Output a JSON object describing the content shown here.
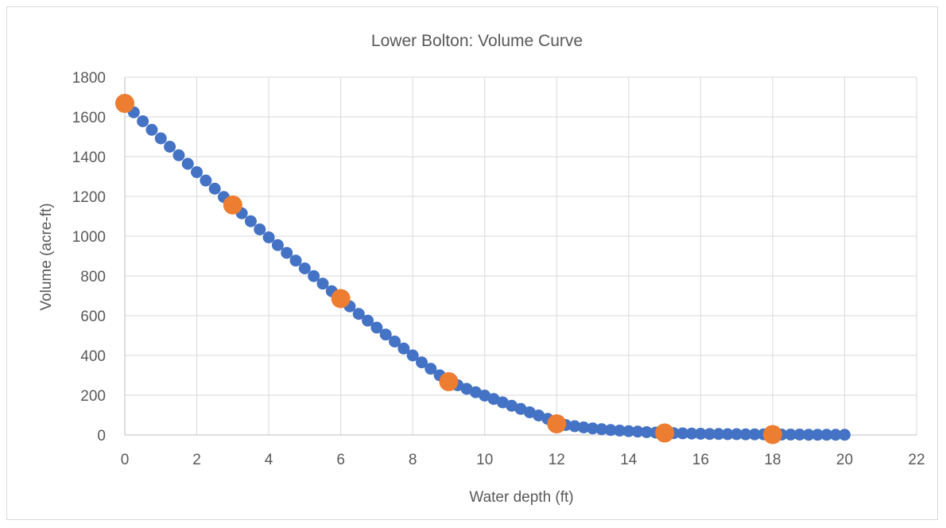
{
  "chart_data": {
    "type": "scatter",
    "title": "Lower Bolton: Volume Curve",
    "xlabel": "Water depth (ft)",
    "ylabel": "Volume (acre-ft)",
    "xlim": [
      0,
      22
    ],
    "ylim": [
      0,
      1800
    ],
    "xticks": [
      0,
      2,
      4,
      6,
      8,
      10,
      12,
      14,
      16,
      18,
      20,
      22
    ],
    "yticks": [
      0,
      200,
      400,
      600,
      800,
      1000,
      1200,
      1400,
      1600,
      1800
    ],
    "grid": true,
    "legend": "none",
    "series": [
      {
        "color": "#4472c4",
        "marker": "small-circle",
        "x": [
          0,
          0.25,
          0.5,
          0.75,
          1,
          1.25,
          1.5,
          1.75,
          2,
          2.25,
          2.5,
          2.75,
          3,
          3.25,
          3.5,
          3.75,
          4,
          4.25,
          4.5,
          4.75,
          5,
          5.25,
          5.5,
          5.75,
          6,
          6.25,
          6.5,
          6.75,
          7,
          7.25,
          7.5,
          7.75,
          8,
          8.25,
          8.5,
          8.75,
          9,
          9.25,
          9.5,
          9.75,
          10,
          10.25,
          10.5,
          10.75,
          11,
          11.25,
          11.5,
          11.75,
          12,
          12.25,
          12.5,
          12.75,
          13,
          13.25,
          13.5,
          13.75,
          14,
          14.25,
          14.5,
          14.75,
          15,
          15.25,
          15.5,
          15.75,
          16,
          16.25,
          16.5,
          16.75,
          17,
          17.25,
          17.5,
          17.75,
          18,
          18.25,
          18.5,
          18.75,
          19,
          19.25,
          19.5,
          19.75,
          20
        ],
        "y": [
          1668,
          1623,
          1578,
          1535,
          1492,
          1450,
          1407,
          1364,
          1322,
          1280,
          1239,
          1197,
          1157,
          1115,
          1075,
          1034,
          994,
          955,
          916,
          877,
          838,
          799,
          761,
          723,
          686,
          647,
          609,
          575,
          540,
          505,
          470,
          435,
          400,
          365,
          333,
          300,
          268,
          250,
          232,
          215,
          198,
          181,
          164,
          147,
          131,
          114,
          98,
          81,
          56,
          50,
          44,
          38,
          33,
          29,
          25,
          22,
          19,
          17,
          14,
          12,
          10,
          9,
          8,
          7,
          6,
          5,
          5,
          4,
          4,
          3,
          3,
          3,
          2,
          2,
          2,
          2,
          1,
          1,
          1,
          1,
          1
        ]
      },
      {
        "color": "#ed7d31",
        "marker": "large-circle",
        "x": [
          0,
          3,
          6,
          9,
          12,
          15,
          18
        ],
        "y": [
          1668,
          1157,
          686,
          268,
          56,
          10,
          2
        ]
      }
    ]
  }
}
